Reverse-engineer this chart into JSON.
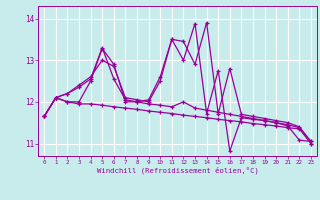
{
  "xlabel": "Windchill (Refroidissement éolien,°C)",
  "bg_color": "#c8ecec",
  "line_color": "#990099",
  "grid_color": "#ffffff",
  "xmin": -0.5,
  "xmax": 23.5,
  "ymin": 10.7,
  "ymax": 14.3,
  "yticks": [
    11,
    12,
    13,
    14
  ],
  "xticks": [
    0,
    1,
    2,
    3,
    4,
    5,
    6,
    7,
    8,
    9,
    10,
    11,
    12,
    13,
    14,
    15,
    16,
    17,
    18,
    19,
    20,
    21,
    22,
    23
  ],
  "series": [
    [
      11.65,
      12.1,
      12.0,
      11.95,
      11.95,
      11.92,
      11.88,
      11.85,
      11.82,
      11.78,
      11.75,
      11.72,
      11.68,
      11.65,
      11.62,
      11.58,
      11.55,
      11.52,
      11.48,
      11.45,
      11.42,
      11.38,
      11.35,
      11.0
    ],
    [
      11.65,
      12.1,
      12.2,
      12.35,
      12.55,
      13.3,
      12.55,
      12.05,
      12.0,
      11.95,
      11.92,
      11.88,
      12.0,
      11.85,
      11.8,
      11.75,
      11.7,
      11.65,
      11.6,
      11.55,
      11.5,
      11.45,
      11.38,
      11.0
    ],
    [
      11.65,
      12.1,
      12.2,
      12.4,
      12.6,
      13.0,
      12.85,
      12.1,
      12.05,
      12.0,
      12.5,
      13.5,
      13.45,
      12.9,
      13.9,
      11.72,
      12.8,
      11.7,
      11.65,
      11.6,
      11.55,
      11.5,
      11.4,
      11.05
    ],
    [
      11.65,
      12.1,
      12.0,
      12.0,
      12.5,
      13.28,
      12.9,
      12.0,
      12.0,
      12.05,
      12.6,
      13.5,
      13.0,
      13.88,
      11.72,
      12.75,
      10.82,
      11.62,
      11.58,
      11.55,
      11.5,
      11.42,
      11.08,
      11.05
    ]
  ]
}
